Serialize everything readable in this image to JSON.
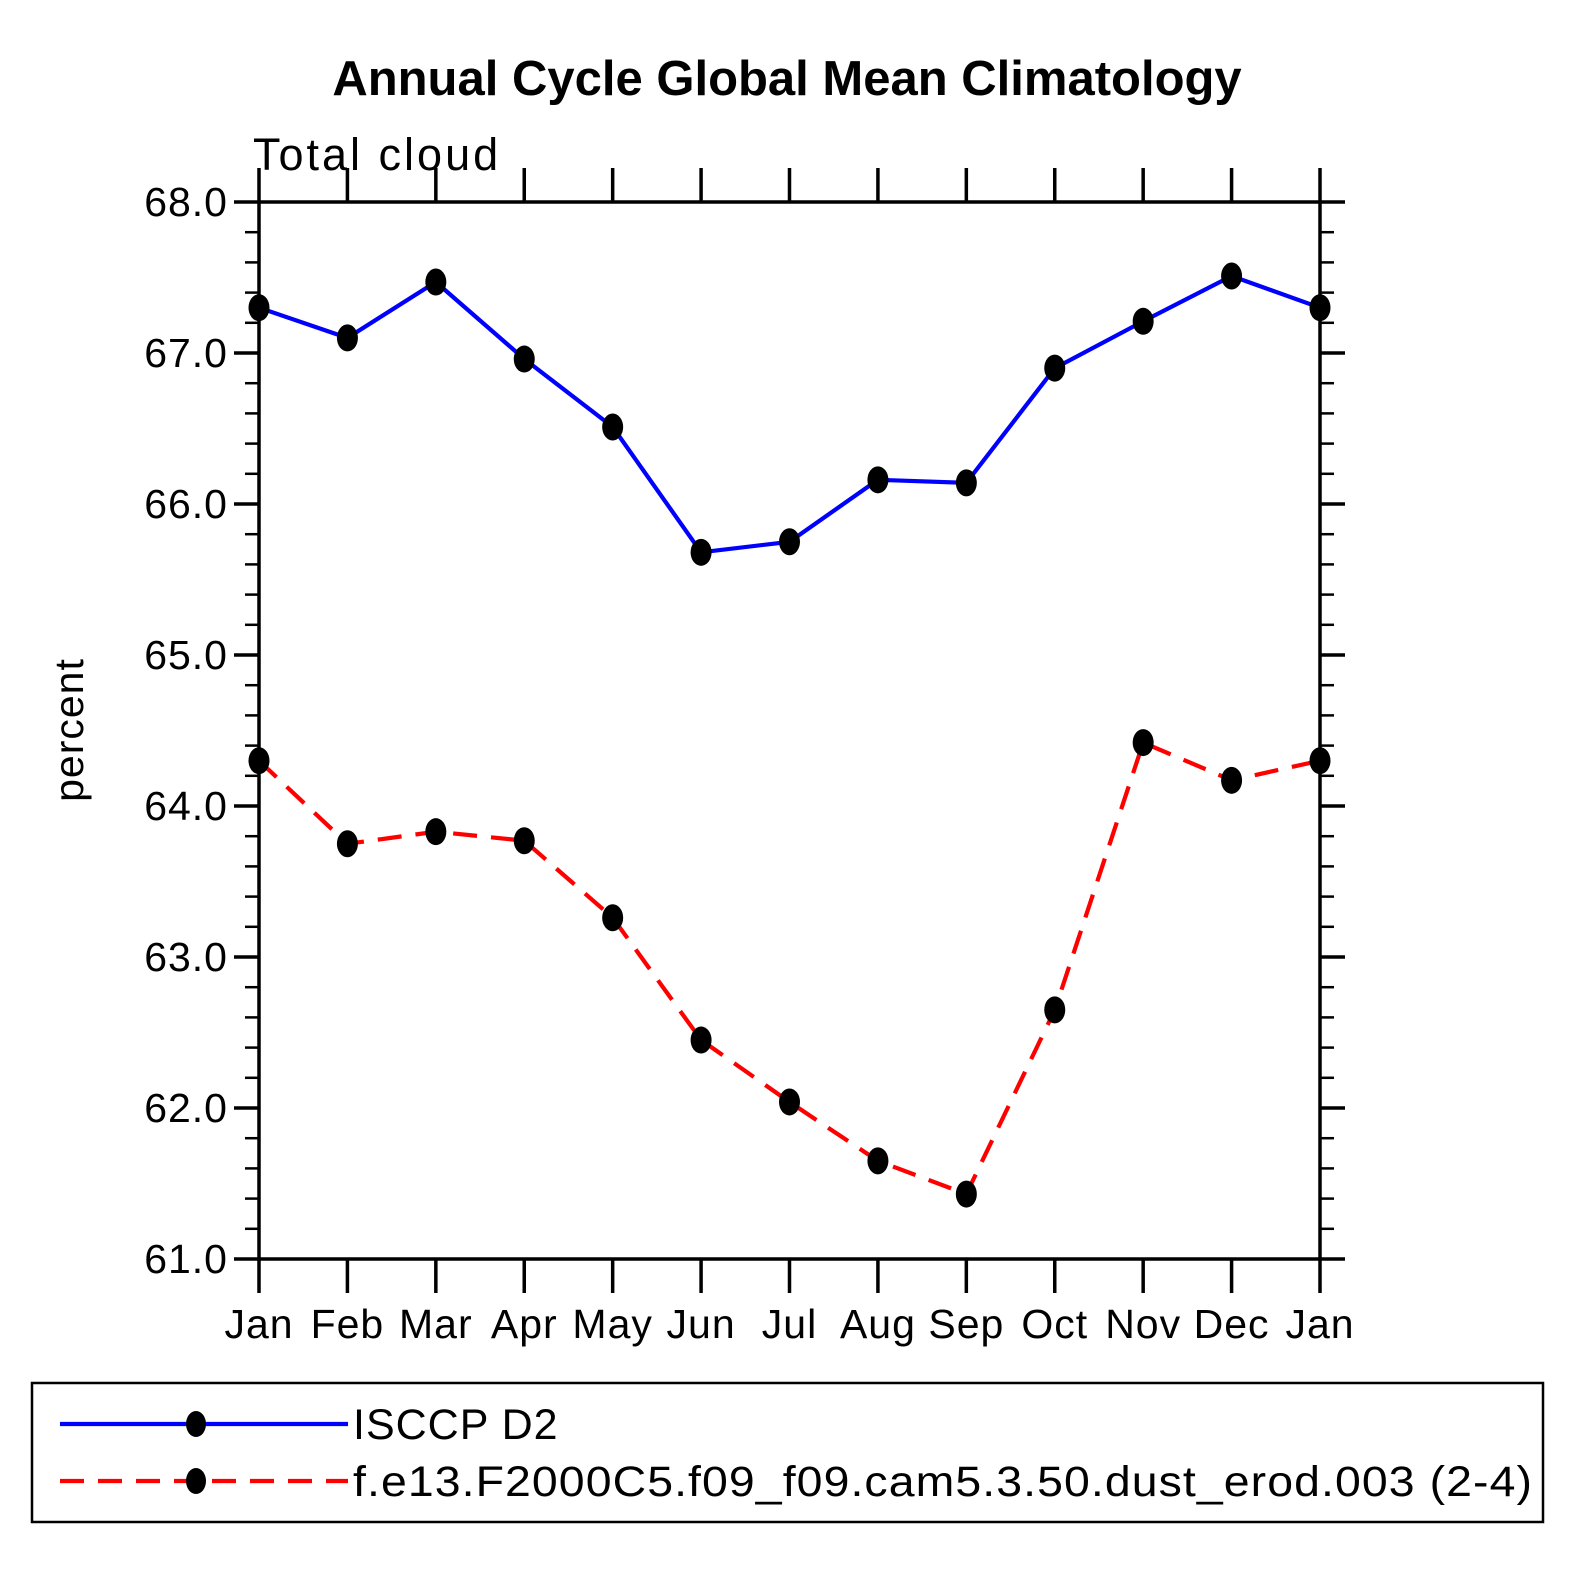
{
  "chart_data": {
    "type": "line",
    "title": "Annual Cycle Global Mean Climatology",
    "subtitle": "Total cloud",
    "xlabel": "",
    "ylabel": "percent",
    "categories": [
      "Jan",
      "Feb",
      "Mar",
      "Apr",
      "May",
      "Jun",
      "Jul",
      "Aug",
      "Sep",
      "Oct",
      "Nov",
      "Dec",
      "Jan"
    ],
    "series": [
      {
        "name": "ISCCP D2",
        "color": "#0000ff",
        "line_style": "solid",
        "marker": "filled-circle",
        "values": [
          67.3,
          67.1,
          67.47,
          66.96,
          66.51,
          65.68,
          65.75,
          66.16,
          66.14,
          66.9,
          67.21,
          67.51,
          67.3
        ]
      },
      {
        "name": "f.e13.F2000C5.f09_f09.cam5.3.50.dust_erod.003 (2-4)",
        "color": "#ff0000",
        "line_style": "dashed",
        "marker": "filled-circle",
        "values": [
          64.3,
          63.75,
          63.83,
          63.77,
          63.26,
          62.45,
          62.04,
          61.65,
          61.43,
          62.65,
          64.42,
          64.17,
          64.3
        ]
      }
    ],
    "ylim": [
      61.0,
      68.0
    ],
    "ytick_major": [
      68.0,
      67.0,
      66.0,
      65.0,
      64.0,
      63.0,
      62.0,
      61.0
    ],
    "ytick_minor_step": 0.2,
    "marker_color": "#000000",
    "axis_color": "#000000",
    "grid": false,
    "legend_position": "bottom-box-full-width"
  }
}
